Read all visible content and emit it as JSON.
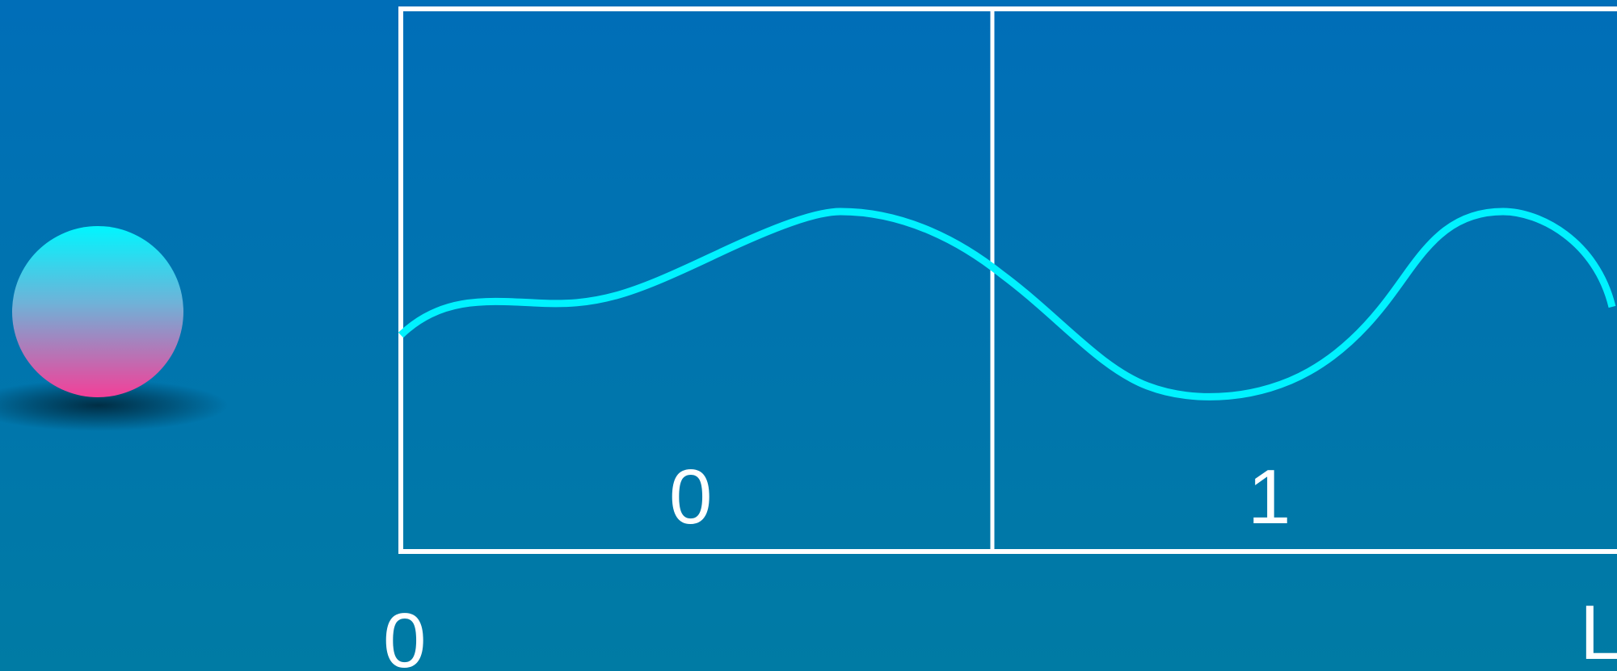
{
  "colors": {
    "background_top": "#006eb8",
    "background_bottom": "#007ba4",
    "frame": "#ffffff",
    "wave": "#00f2ff",
    "ball_top": "#00f6ff",
    "ball_bottom": "#f43f98",
    "shadow": "#002a3f"
  },
  "segments": [
    {
      "label": "0"
    },
    {
      "label": "1"
    }
  ],
  "axis": {
    "start_label": "0",
    "end_label": "L"
  }
}
